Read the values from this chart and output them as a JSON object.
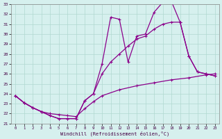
{
  "xlabel": "Windchill (Refroidissement éolien,°C)",
  "xlim": [
    -0.5,
    23.5
  ],
  "ylim": [
    21,
    33
  ],
  "xticks": [
    0,
    1,
    2,
    3,
    4,
    5,
    6,
    7,
    8,
    9,
    10,
    11,
    12,
    13,
    14,
    15,
    16,
    17,
    18,
    19,
    20,
    21,
    22,
    23
  ],
  "yticks": [
    21,
    22,
    23,
    24,
    25,
    26,
    27,
    28,
    29,
    30,
    31,
    32,
    33
  ],
  "background_color": "#d6f0ee",
  "grid_color": "#b0d8d0",
  "line_color": "#8b008b",
  "line1_x": [
    0,
    1,
    2,
    3,
    4,
    5,
    6,
    7,
    8,
    9,
    10,
    11,
    12,
    13,
    14,
    15,
    16,
    17,
    18,
    19,
    20,
    21,
    22,
    23
  ],
  "line1_y": [
    23.8,
    23.1,
    22.6,
    22.2,
    21.8,
    21.5,
    21.5,
    21.5,
    23.3,
    24.0,
    27.0,
    31.7,
    31.5,
    27.2,
    29.8,
    30.0,
    32.2,
    33.2,
    33.3,
    31.2,
    27.8,
    26.2,
    26.0,
    25.8
  ],
  "line2_x": [
    0,
    1,
    2,
    3,
    4,
    5,
    6,
    7,
    8,
    9,
    10,
    11,
    12,
    13,
    14,
    15,
    16,
    17,
    18,
    19,
    20,
    21,
    22,
    23
  ],
  "line2_y": [
    23.8,
    23.1,
    22.6,
    22.2,
    21.8,
    21.5,
    21.5,
    21.5,
    23.3,
    24.0,
    26.0,
    27.2,
    28.0,
    28.8,
    29.5,
    29.8,
    30.5,
    31.0,
    31.2,
    31.2,
    27.8,
    26.2,
    26.0,
    25.8
  ],
  "line3_x": [
    0,
    1,
    2,
    3,
    4,
    5,
    6,
    7,
    8,
    9,
    10,
    12,
    14,
    16,
    18,
    20,
    22,
    23
  ],
  "line3_y": [
    23.8,
    23.1,
    22.6,
    22.2,
    22.0,
    21.9,
    21.8,
    21.7,
    22.5,
    23.2,
    23.8,
    24.4,
    24.8,
    25.1,
    25.4,
    25.6,
    25.9,
    26.0
  ]
}
